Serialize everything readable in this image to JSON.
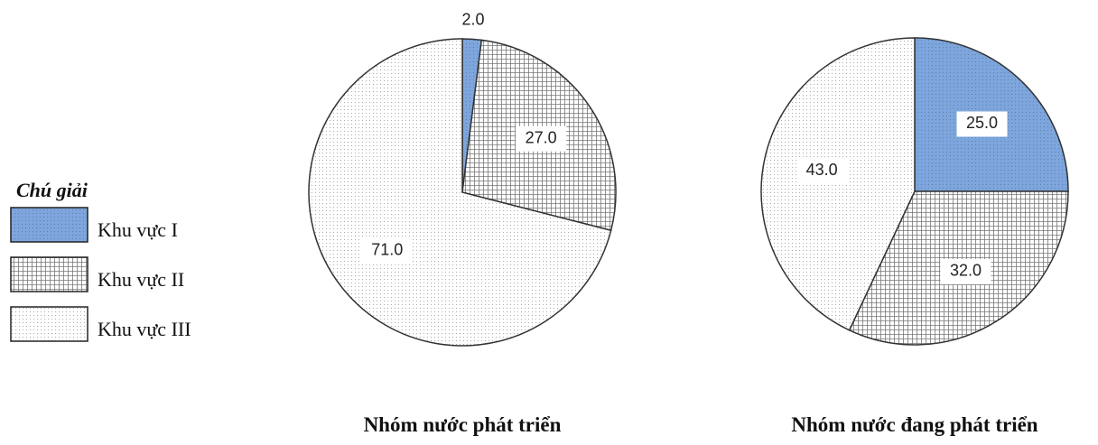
{
  "legend": {
    "title": "Chú giải"
  },
  "chart_data": [
    {
      "type": "pie",
      "title": "Nhóm nước phát triển",
      "categories": [
        "Khu vực I",
        "Khu vực II",
        "Khu vực III"
      ],
      "values": [
        2,
        27,
        71
      ],
      "value_labels": [
        "2.0",
        "27.0",
        "71.0"
      ],
      "colors": [
        "#7ea6dc",
        "#ffffff",
        "#ffffff"
      ]
    },
    {
      "type": "pie",
      "title": "Nhóm nước đang phát triển",
      "categories": [
        "Khu vực I",
        "Khu vực II",
        "Khu vực III"
      ],
      "values": [
        25,
        32,
        43
      ],
      "value_labels": [
        "25.0",
        "32.0",
        "43.0"
      ],
      "colors": [
        "#7ea6dc",
        "#ffffff",
        "#ffffff"
      ]
    }
  ]
}
